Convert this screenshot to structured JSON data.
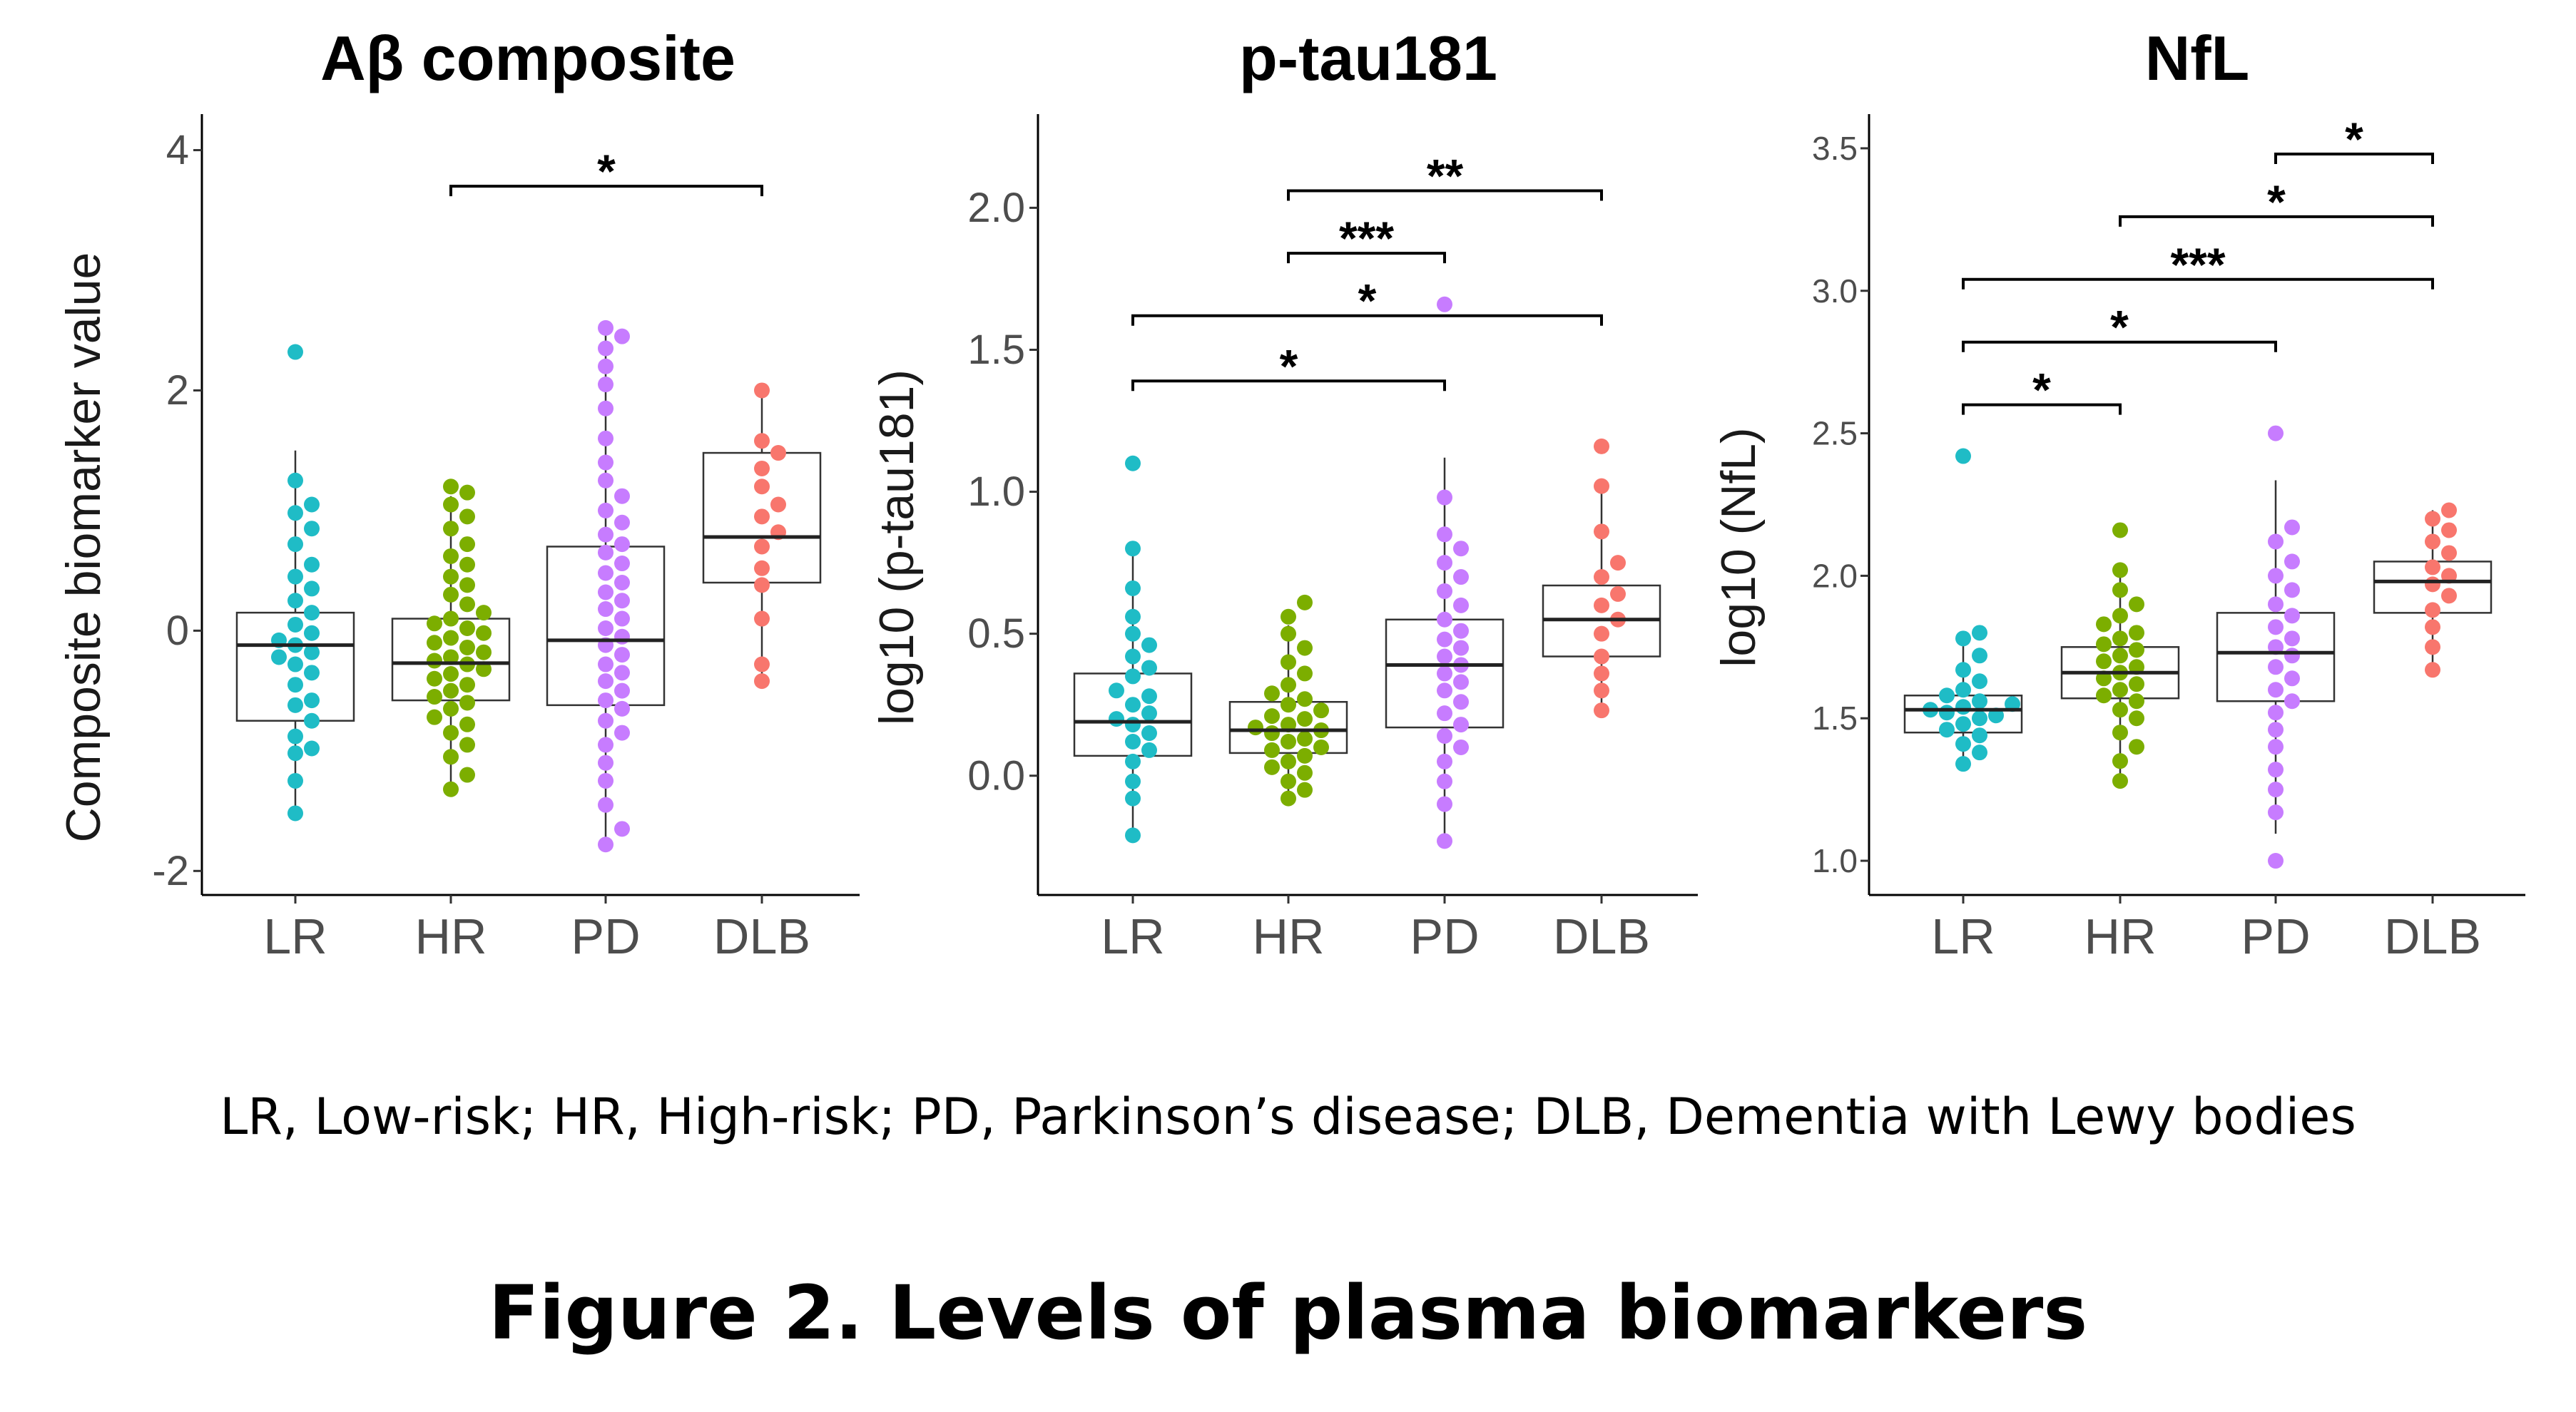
{
  "figure_title": "Figure 2. Levels of plasma biomarkers",
  "legend_text": "LR, Low-risk; HR, High-risk; PD, Parkinson’s disease; DLB, Dementia with Lewy bodies",
  "colors": {
    "LR": "#1fbcc6",
    "HR": "#7cae00",
    "PD": "#c77cff",
    "DLB": "#f8766d"
  },
  "chart_data": [
    {
      "type": "box_swarm",
      "title": "Aβ composite",
      "ylabel": "Composite biomarker value",
      "xlabel": "",
      "categories": [
        "LR",
        "HR",
        "PD",
        "DLB"
      ],
      "ylim": [
        -2.2,
        4.3
      ],
      "yticks": [
        -2,
        0,
        2,
        4
      ],
      "ytick_labels": [
        "-2",
        "0",
        "2",
        "4"
      ],
      "boxes": [
        {
          "group": "LR",
          "q1": -0.75,
          "median": -0.12,
          "q3": 0.15
        },
        {
          "group": "HR",
          "q1": -0.58,
          "median": -0.27,
          "q3": 0.1
        },
        {
          "group": "PD",
          "q1": -0.62,
          "median": -0.08,
          "q3": 0.7
        },
        {
          "group": "DLB",
          "q1": 0.4,
          "median": 0.78,
          "q3": 1.48
        }
      ],
      "points": [
        {
          "group": "LR",
          "values": [
            -1.52,
            -1.25,
            -1.02,
            -0.98,
            -0.88,
            -0.75,
            -0.62,
            -0.58,
            -0.45,
            -0.35,
            -0.28,
            -0.22,
            -0.18,
            -0.12,
            -0.08,
            -0.02,
            0.05,
            0.15,
            0.25,
            0.35,
            0.45,
            0.55,
            0.72,
            0.85,
            0.98,
            1.05,
            1.25,
            2.32
          ]
        },
        {
          "group": "HR",
          "values": [
            -1.32,
            -1.2,
            -1.05,
            -0.95,
            -0.85,
            -0.78,
            -0.72,
            -0.65,
            -0.6,
            -0.55,
            -0.5,
            -0.45,
            -0.4,
            -0.36,
            -0.32,
            -0.28,
            -0.25,
            -0.22,
            -0.18,
            -0.14,
            -0.1,
            -0.06,
            -0.02,
            0.02,
            0.06,
            0.1,
            0.15,
            0.22,
            0.3,
            0.38,
            0.45,
            0.55,
            0.62,
            0.72,
            0.85,
            0.95,
            1.05,
            1.15,
            1.2
          ]
        },
        {
          "group": "PD",
          "values": [
            -1.78,
            -1.65,
            -1.45,
            -1.25,
            -1.1,
            -0.95,
            -0.85,
            -0.75,
            -0.65,
            -0.58,
            -0.5,
            -0.42,
            -0.35,
            -0.28,
            -0.2,
            -0.12,
            -0.05,
            0.02,
            0.1,
            0.18,
            0.25,
            0.32,
            0.4,
            0.48,
            0.56,
            0.65,
            0.72,
            0.8,
            0.9,
            1.0,
            1.12,
            1.25,
            1.4,
            1.6,
            1.85,
            2.05,
            2.2,
            2.35,
            2.45,
            2.52
          ]
        },
        {
          "group": "DLB",
          "values": [
            -0.42,
            -0.28,
            0.1,
            0.38,
            0.52,
            0.7,
            0.82,
            0.95,
            1.05,
            1.2,
            1.35,
            1.48,
            1.58,
            2.0
          ]
        }
      ],
      "significance": [
        {
          "from": "HR",
          "to": "DLB",
          "label": "*",
          "y": 3.7
        }
      ]
    },
    {
      "type": "box_swarm",
      "title": "p-tau181",
      "ylabel": "log10 (p-tau181)",
      "xlabel": "",
      "categories": [
        "LR",
        "HR",
        "PD",
        "DLB"
      ],
      "ylim": [
        -0.42,
        2.33
      ],
      "yticks": [
        0.0,
        0.5,
        1.0,
        1.5,
        2.0
      ],
      "ytick_labels": [
        "0.0",
        "0.5",
        "1.0",
        "1.5",
        "2.0"
      ],
      "boxes": [
        {
          "group": "LR",
          "q1": 0.07,
          "median": 0.19,
          "q3": 0.36
        },
        {
          "group": "HR",
          "q1": 0.08,
          "median": 0.16,
          "q3": 0.26
        },
        {
          "group": "PD",
          "q1": 0.17,
          "median": 0.39,
          "q3": 0.55
        },
        {
          "group": "DLB",
          "q1": 0.42,
          "median": 0.55,
          "q3": 0.67
        }
      ],
      "points": [
        {
          "group": "LR",
          "values": [
            -0.21,
            -0.08,
            -0.02,
            0.05,
            0.09,
            0.12,
            0.15,
            0.18,
            0.2,
            0.22,
            0.25,
            0.28,
            0.3,
            0.35,
            0.38,
            0.42,
            0.46,
            0.5,
            0.56,
            0.66,
            0.8,
            1.1
          ]
        },
        {
          "group": "HR",
          "values": [
            -0.08,
            -0.05,
            -0.02,
            0.01,
            0.03,
            0.05,
            0.07,
            0.09,
            0.1,
            0.12,
            0.13,
            0.15,
            0.16,
            0.17,
            0.18,
            0.2,
            0.21,
            0.23,
            0.25,
            0.27,
            0.29,
            0.32,
            0.36,
            0.4,
            0.45,
            0.5,
            0.56,
            0.61
          ]
        },
        {
          "group": "PD",
          "values": [
            -0.23,
            -0.1,
            -0.02,
            0.05,
            0.1,
            0.14,
            0.18,
            0.22,
            0.26,
            0.3,
            0.33,
            0.36,
            0.39,
            0.42,
            0.45,
            0.48,
            0.51,
            0.55,
            0.6,
            0.65,
            0.7,
            0.75,
            0.8,
            0.85,
            0.98,
            1.66
          ]
        },
        {
          "group": "DLB",
          "values": [
            0.23,
            0.3,
            0.36,
            0.42,
            0.5,
            0.55,
            0.6,
            0.64,
            0.7,
            0.75,
            0.86,
            1.02,
            1.16
          ]
        }
      ],
      "significance": [
        {
          "from": "LR",
          "to": "PD",
          "label": "*",
          "y": 1.39
        },
        {
          "from": "LR",
          "to": "DLB",
          "label": "*",
          "y": 1.62
        },
        {
          "from": "HR",
          "to": "PD",
          "label": "***",
          "y": 1.84
        },
        {
          "from": "HR",
          "to": "DLB",
          "label": "**",
          "y": 2.06
        }
      ]
    },
    {
      "type": "box_swarm",
      "title": "NfL",
      "ylabel": "log10 (NfL)",
      "xlabel": "",
      "categories": [
        "LR",
        "HR",
        "PD",
        "DLB"
      ],
      "ylim": [
        0.88,
        3.62
      ],
      "yticks": [
        1.0,
        1.5,
        2.0,
        2.5,
        3.0,
        3.5
      ],
      "ytick_labels": [
        "1.0",
        "1.5",
        "2.0",
        "2.5",
        "3.0",
        "3.5"
      ],
      "boxes": [
        {
          "group": "LR",
          "q1": 1.45,
          "median": 1.53,
          "q3": 1.58
        },
        {
          "group": "HR",
          "q1": 1.57,
          "median": 1.66,
          "q3": 1.75
        },
        {
          "group": "PD",
          "q1": 1.56,
          "median": 1.73,
          "q3": 1.87
        },
        {
          "group": "DLB",
          "q1": 1.87,
          "median": 1.98,
          "q3": 2.05
        }
      ],
      "points": [
        {
          "group": "LR",
          "values": [
            1.34,
            1.38,
            1.41,
            1.44,
            1.46,
            1.48,
            1.5,
            1.51,
            1.52,
            1.53,
            1.54,
            1.55,
            1.56,
            1.58,
            1.6,
            1.63,
            1.67,
            1.72,
            1.78,
            1.8,
            2.42
          ]
        },
        {
          "group": "HR",
          "values": [
            1.28,
            1.35,
            1.4,
            1.45,
            1.5,
            1.53,
            1.56,
            1.58,
            1.6,
            1.62,
            1.64,
            1.66,
            1.68,
            1.7,
            1.72,
            1.74,
            1.76,
            1.78,
            1.8,
            1.83,
            1.86,
            1.9,
            1.95,
            2.02,
            2.16
          ]
        },
        {
          "group": "PD",
          "values": [
            1.0,
            1.17,
            1.25,
            1.32,
            1.4,
            1.46,
            1.52,
            1.56,
            1.6,
            1.64,
            1.68,
            1.72,
            1.75,
            1.78,
            1.82,
            1.86,
            1.9,
            1.95,
            2.0,
            2.05,
            2.12,
            2.17,
            2.5
          ]
        },
        {
          "group": "DLB",
          "values": [
            1.67,
            1.75,
            1.82,
            1.88,
            1.93,
            1.97,
            2.0,
            2.03,
            2.08,
            2.12,
            2.16,
            2.2,
            2.23
          ]
        }
      ],
      "significance": [
        {
          "from": "LR",
          "to": "HR",
          "label": "*",
          "y": 2.6
        },
        {
          "from": "LR",
          "to": "PD",
          "label": "*",
          "y": 2.82
        },
        {
          "from": "LR",
          "to": "DLB",
          "label": "***",
          "y": 3.04
        },
        {
          "from": "HR",
          "to": "DLB",
          "label": "*",
          "y": 3.26
        },
        {
          "from": "PD",
          "to": "DLB",
          "label": "*",
          "y": 3.48
        }
      ]
    }
  ]
}
